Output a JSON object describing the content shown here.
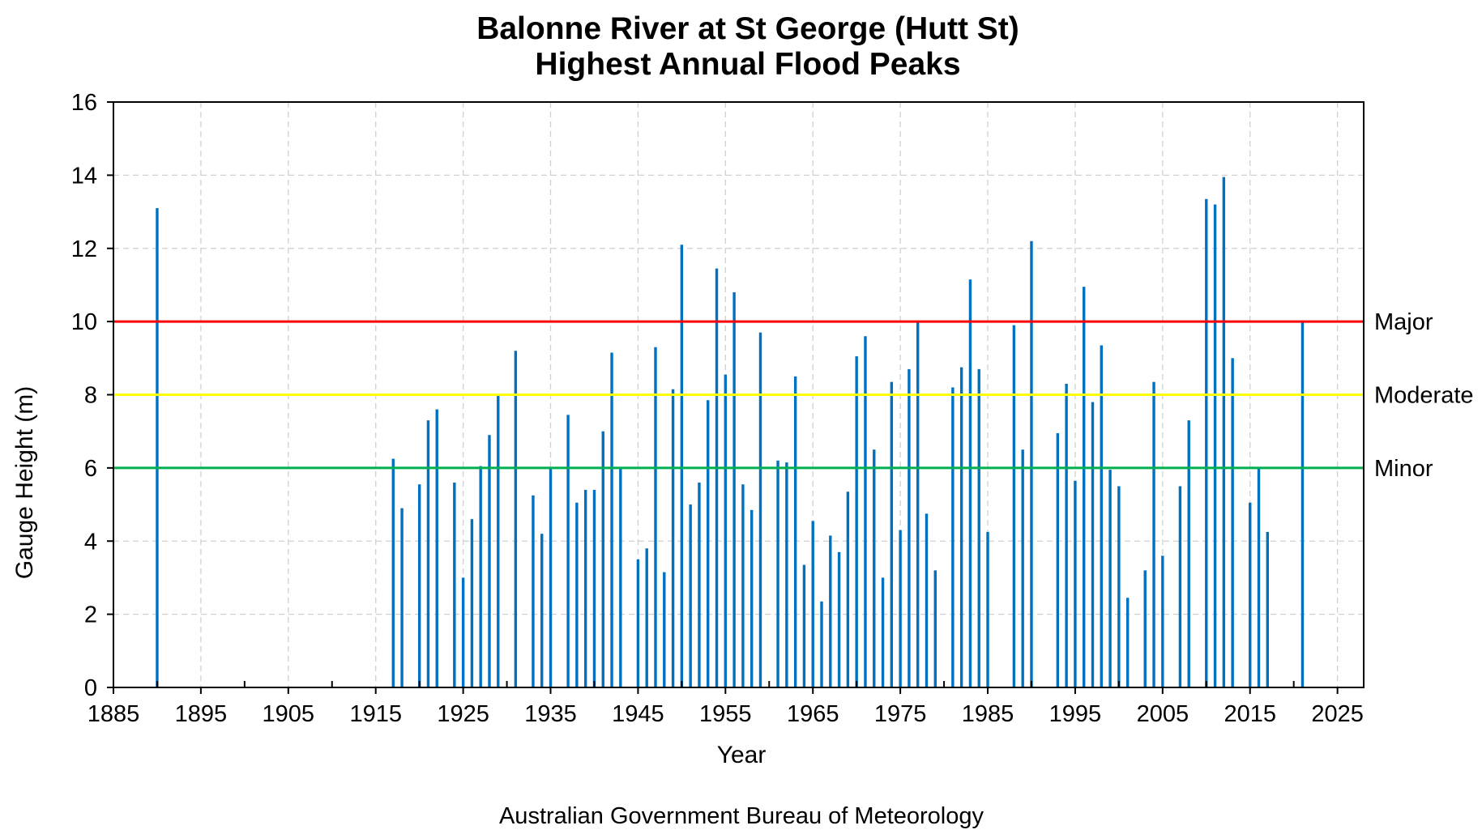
{
  "chart_data": {
    "type": "bar",
    "title": "Balonne River at St George (Hutt St)",
    "subtitle": "Highest Annual Flood Peaks",
    "xlabel": "Year",
    "ylabel": "Gauge Height (m)",
    "xlim": [
      1885,
      2028
    ],
    "ylim": [
      0,
      16
    ],
    "xticks": [
      1885,
      1895,
      1905,
      1915,
      1925,
      1935,
      1945,
      1955,
      1965,
      1975,
      1985,
      1995,
      2005,
      2015,
      2025
    ],
    "yticks": [
      0,
      2,
      4,
      6,
      8,
      10,
      12,
      14,
      16
    ],
    "grid": true,
    "thresholds": [
      {
        "name": "Major",
        "value": 10,
        "color": "#ff0000"
      },
      {
        "name": "Moderate",
        "value": 8,
        "color": "#ffff00"
      },
      {
        "name": "Minor",
        "value": 6,
        "color": "#00b050"
      }
    ],
    "bar_color": "#0070c0",
    "x": [
      1890,
      1917,
      1918,
      1920,
      1921,
      1922,
      1924,
      1925,
      1926,
      1927,
      1928,
      1929,
      1931,
      1933,
      1934,
      1935,
      1937,
      1938,
      1939,
      1940,
      1941,
      1942,
      1943,
      1945,
      1946,
      1947,
      1948,
      1949,
      1950,
      1951,
      1952,
      1953,
      1954,
      1955,
      1956,
      1957,
      1958,
      1959,
      1961,
      1962,
      1963,
      1964,
      1965,
      1966,
      1967,
      1968,
      1969,
      1970,
      1971,
      1972,
      1973,
      1974,
      1975,
      1976,
      1977,
      1978,
      1979,
      1981,
      1982,
      1983,
      1984,
      1985,
      1988,
      1989,
      1990,
      1993,
      1994,
      1995,
      1996,
      1997,
      1998,
      1999,
      2000,
      2001,
      2003,
      2004,
      2005,
      2007,
      2008,
      2010,
      2011,
      2012,
      2013,
      2015,
      2016,
      2017,
      2021
    ],
    "values": [
      13.1,
      6.25,
      4.9,
      5.55,
      7.3,
      7.6,
      5.6,
      3.0,
      4.6,
      6.05,
      6.9,
      8.0,
      9.2,
      5.25,
      4.2,
      6.0,
      7.45,
      5.05,
      5.4,
      5.4,
      7.0,
      9.15,
      6.0,
      3.5,
      3.8,
      9.3,
      3.15,
      8.15,
      12.1,
      5.0,
      5.6,
      7.85,
      11.45,
      8.55,
      10.8,
      5.55,
      4.85,
      9.7,
      6.2,
      6.15,
      8.5,
      3.35,
      4.55,
      2.35,
      4.15,
      3.7,
      5.35,
      9.05,
      9.6,
      6.5,
      3.0,
      8.35,
      4.3,
      8.7,
      10.0,
      4.75,
      3.2,
      8.2,
      8.75,
      11.15,
      8.7,
      4.25,
      9.9,
      6.5,
      12.2,
      6.95,
      8.3,
      5.65,
      10.95,
      7.8,
      9.35,
      5.95,
      5.5,
      2.45,
      3.2,
      8.35,
      3.6,
      5.5,
      7.3,
      13.35,
      13.2,
      13.95,
      9.0,
      5.05,
      6.0,
      4.25,
      10.0
    ]
  },
  "credit": "Australian Government Bureau of Meteorology"
}
